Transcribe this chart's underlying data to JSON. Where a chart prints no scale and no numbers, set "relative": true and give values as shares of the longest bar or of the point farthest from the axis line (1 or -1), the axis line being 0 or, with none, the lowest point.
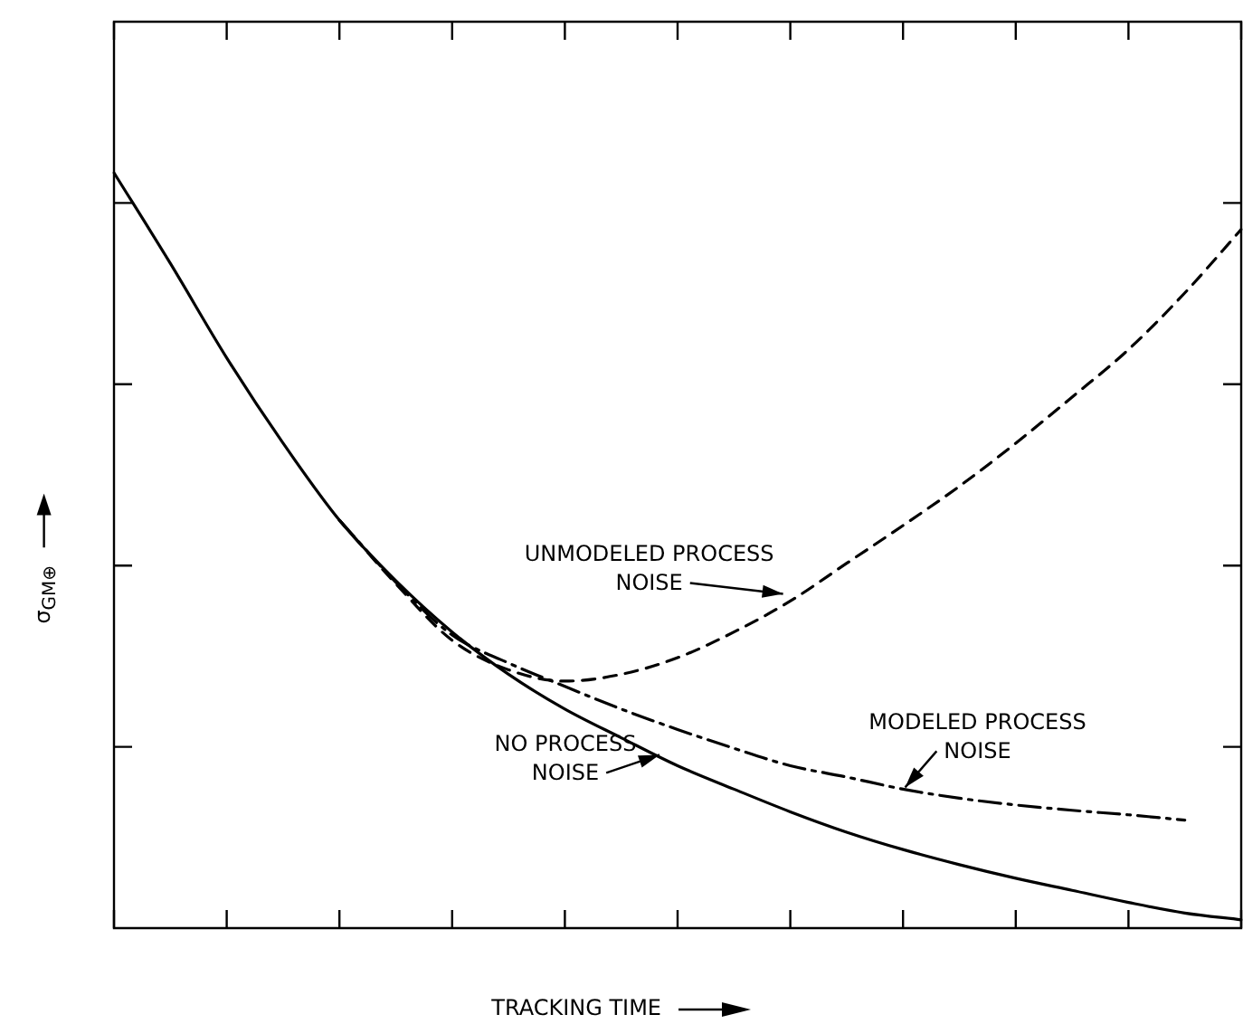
{
  "chart_data": {
    "type": "line",
    "relative": true,
    "xlabel": "TRACKING TIME",
    "ylabel": "σ$_{GM⊕}$",
    "marker": "none",
    "categories": [
      null,
      null,
      null,
      null,
      null,
      null,
      null,
      null,
      null,
      null,
      null,
      null,
      null,
      null,
      null,
      null,
      null,
      null,
      null,
      null,
      null
    ],
    "series": [
      {
        "name": "NO PROCESS NOISE",
        "color": "#000000",
        "line_style": "solid",
        "values": [
          1.0,
          0.88,
          0.755,
          0.642,
          0.54,
          0.46,
          0.392,
          0.336,
          0.29,
          0.252,
          0.215,
          0.184,
          0.154,
          0.127,
          0.104,
          0.084,
          0.066,
          0.05,
          0.034,
          0.02,
          0.011
        ]
      },
      {
        "name": "UNMODELED PROCESS NOISE",
        "color": "#000000",
        "line_style": "dashed",
        "values": [
          null,
          null,
          null,
          null,
          0.54,
          0.456,
          0.381,
          0.342,
          0.327,
          0.336,
          0.358,
          0.392,
          0.433,
          0.483,
          0.533,
          0.585,
          0.642,
          0.703,
          0.766,
          0.841,
          0.925
        ]
      },
      {
        "name": "MODELED PROCESS NOISE",
        "color": "#000000",
        "line_style": "dashdot",
        "values": [
          null,
          null,
          null,
          null,
          0.54,
          0.458,
          0.388,
          0.351,
          0.32,
          0.29,
          0.263,
          0.238,
          0.215,
          0.2,
          0.184,
          0.172,
          0.163,
          0.156,
          0.15,
          0.143,
          null
        ]
      }
    ]
  }
}
